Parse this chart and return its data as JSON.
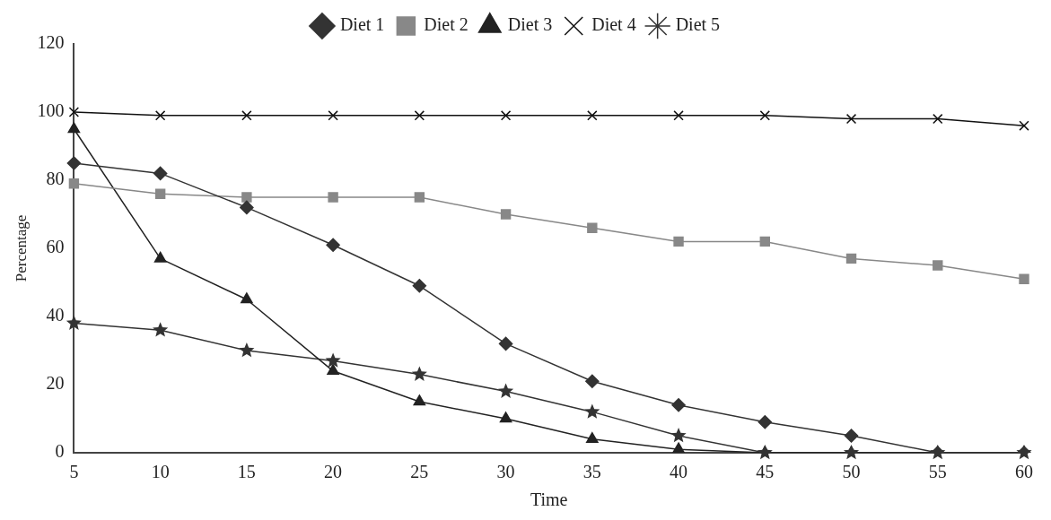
{
  "chart_data": {
    "type": "line",
    "xlabel": "Time",
    "ylabel": "Percentage",
    "categories": [
      "5",
      "10",
      "15",
      "20",
      "25",
      "30",
      "35",
      "40",
      "45",
      "50",
      "55",
      "60"
    ],
    "ylim": [
      0,
      120
    ],
    "yticks": [
      0,
      20,
      40,
      60,
      80,
      100,
      120
    ],
    "grid": false,
    "legend": "top",
    "series": [
      {
        "name": "Diet 1",
        "color": "#333333",
        "marker": "diamond",
        "values": [
          85,
          82,
          72,
          61,
          49,
          32,
          21,
          14,
          9,
          5,
          0,
          0
        ]
      },
      {
        "name": "Diet 2",
        "color": "#888888",
        "marker": "square",
        "values": [
          79,
          76,
          75,
          75,
          75,
          70,
          66,
          62,
          62,
          57,
          55,
          51
        ]
      },
      {
        "name": "Diet 3",
        "color": "#222222",
        "marker": "triangle",
        "values": [
          95,
          57,
          45,
          24,
          15,
          10,
          4,
          1,
          0,
          0,
          0,
          0
        ]
      },
      {
        "name": "Diet 4",
        "color": "#111111",
        "marker": "cross",
        "values": [
          100,
          99,
          99,
          99,
          99,
          99,
          99,
          99,
          99,
          98,
          98,
          96
        ]
      },
      {
        "name": "Diet 5",
        "color": "#333333",
        "marker": "star",
        "values": [
          38,
          36,
          30,
          27,
          23,
          18,
          12,
          5,
          0,
          0,
          0,
          0
        ]
      }
    ]
  }
}
